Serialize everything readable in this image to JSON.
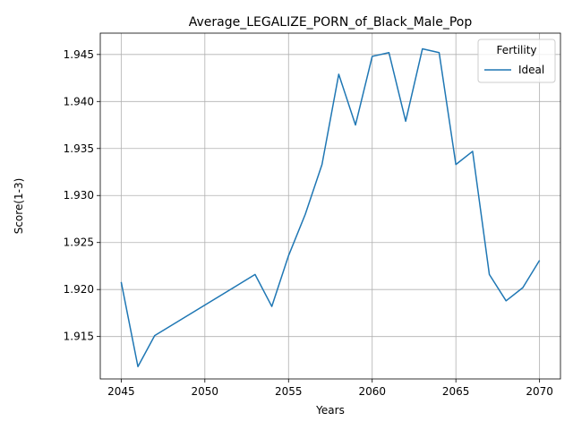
{
  "chart_data": {
    "type": "line",
    "title": "Average_LEGALIZE_PORN_of_Black_Male_Pop",
    "xlabel": "Years",
    "ylabel": "Score(1-3)",
    "x": [
      2045,
      2046,
      2047,
      2053,
      2054,
      2055,
      2056,
      2057,
      2058,
      2059,
      2060,
      2061,
      2062,
      2063,
      2064,
      2065,
      2066,
      2067,
      2068,
      2069,
      2070
    ],
    "series": [
      {
        "name": "Ideal",
        "color": "#1f77b4",
        "values": [
          1.9208,
          1.9118,
          1.9151,
          1.9216,
          1.9182,
          1.9236,
          1.928,
          1.9333,
          1.9429,
          1.9375,
          1.9448,
          1.9452,
          1.9379,
          1.9456,
          1.9452,
          1.9333,
          1.9347,
          1.9216,
          1.9188,
          1.9202,
          1.9231
        ]
      }
    ],
    "xticks": [
      2045,
      2050,
      2055,
      2060,
      2065,
      2070
    ],
    "yticks": [
      1.915,
      1.92,
      1.925,
      1.93,
      1.935,
      1.94,
      1.945
    ],
    "xtick_labels": [
      "2045",
      "2050",
      "2055",
      "2060",
      "2065",
      "2070"
    ],
    "ytick_labels": [
      "1.915",
      "1.920",
      "1.925",
      "1.930",
      "1.935",
      "1.940",
      "1.945"
    ],
    "xlim": [
      2043.75,
      2071.25
    ],
    "ylim": [
      1.91049,
      1.94727
    ],
    "grid": true,
    "legend": {
      "title": "Fertility",
      "placement": "top-right"
    }
  }
}
